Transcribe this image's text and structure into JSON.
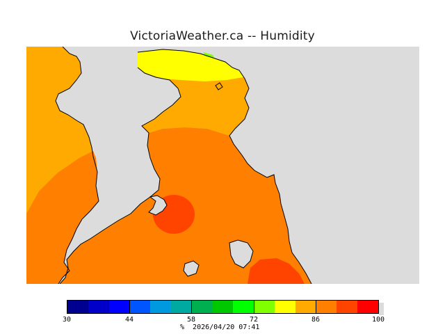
{
  "title": "VictoriaWeather.ca -- Humidity",
  "map": {
    "layers": [
      {
        "name": "land-humidity-high",
        "color": "#ff7f00"
      },
      {
        "name": "land-humidity-moderate",
        "color": "#ffaa00"
      },
      {
        "name": "land-humidity-low",
        "color": "#ffff00"
      },
      {
        "name": "land-humidity-very-high",
        "color": "#ff4400"
      },
      {
        "name": "water",
        "color": "#dcdcdc"
      }
    ]
  },
  "legend": {
    "swatches": [
      "#000090",
      "#0000c8",
      "#0000ff",
      "#0055ff",
      "#0099e0",
      "#00aaa0",
      "#00b050",
      "#00c800",
      "#00ff00",
      "#80ff00",
      "#ffff00",
      "#ffaa00",
      "#ff7f00",
      "#ff4400",
      "#ff0000"
    ],
    "ticks": [
      {
        "label": "30",
        "value": 30
      },
      {
        "label": "44",
        "value": 44
      },
      {
        "label": "58",
        "value": 58
      },
      {
        "label": "72",
        "value": 72
      },
      {
        "label": "86",
        "value": 86
      },
      {
        "label": "100",
        "value": 100
      }
    ],
    "min": 30,
    "max": 100
  },
  "footer": "%  2026/04/20 07:41"
}
